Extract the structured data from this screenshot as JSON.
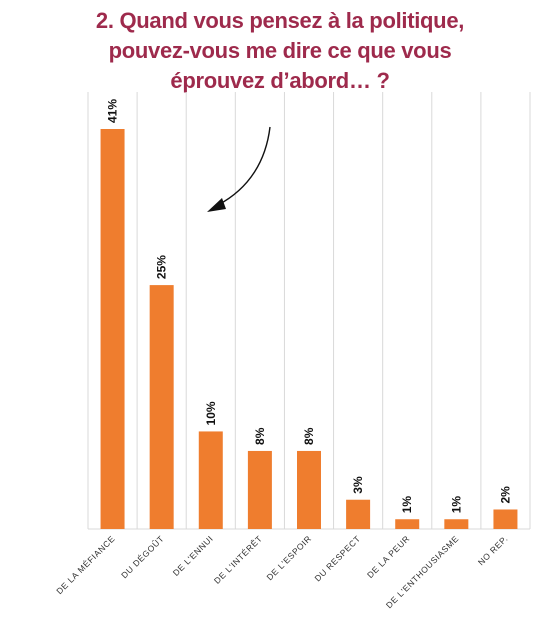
{
  "title_lines": [
    "2. Quand vous pensez à la politique,",
    "pouvez-vous me dire ce que vous",
    "éprouvez d’abord… ?"
  ],
  "colors": {
    "bar": "#ef7d2e",
    "title": "#9e2a4c",
    "grid": "#d9d9d9"
  },
  "chart_data": {
    "type": "bar",
    "categories": [
      "DE LA MÉFIANCE",
      "DU DÉGOÛT",
      "DE L'ENNUI",
      "DE L'INTÉRÊT",
      "DE L'ESPOIR",
      "DU RESPECT",
      "DE LA PEUR",
      "DE L'ENTHOUSIASME",
      "NO REP."
    ],
    "values": [
      41,
      25,
      10,
      8,
      8,
      3,
      1,
      1,
      2
    ],
    "data_labels": [
      "41%",
      "25%",
      "10%",
      "8%",
      "8%",
      "3%",
      "1%",
      "1%",
      "2%"
    ],
    "ylim": [
      0,
      41
    ],
    "grid": "vertical",
    "annotation": "curved arrow pointing to first bar"
  }
}
